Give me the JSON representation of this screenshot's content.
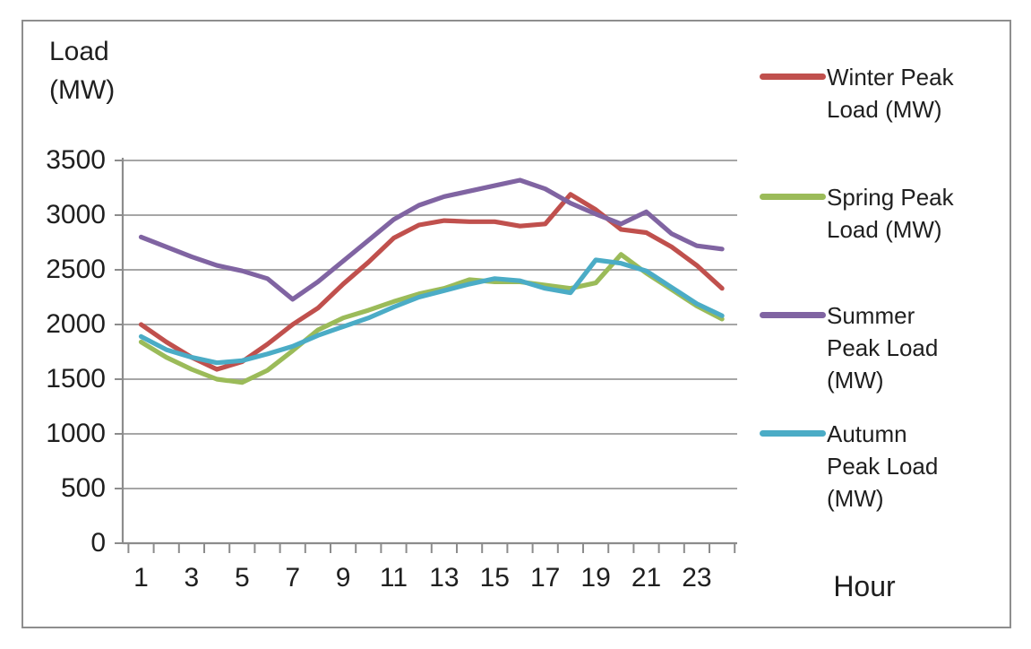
{
  "chart_data": {
    "type": "line",
    "title": "",
    "xlabel": "Hour",
    "ylabel": "Load (MW)",
    "x": [
      1,
      2,
      3,
      4,
      5,
      6,
      7,
      8,
      9,
      10,
      11,
      12,
      13,
      14,
      15,
      16,
      17,
      18,
      19,
      20,
      21,
      22,
      23,
      24
    ],
    "xlim": [
      0.5,
      24.5
    ],
    "ylim": [
      0,
      3500
    ],
    "y_tick_step": 500,
    "y_tick_labels": [
      "3500",
      "3000",
      "2500",
      "2000",
      "1500",
      "1000",
      "500",
      "0"
    ],
    "x_tick_labels": [
      "1",
      "3",
      "5",
      "7",
      "9",
      "11",
      "13",
      "15",
      "17",
      "19",
      "21",
      "23"
    ],
    "grid": "horizontal",
    "legend_position": "right",
    "series": [
      {
        "name": "Winter Peak Load (MW)",
        "color": "#C0504D",
        "values": [
          2000,
          1840,
          1700,
          1590,
          1660,
          1820,
          2000,
          2150,
          2370,
          2570,
          2790,
          2910,
          2950,
          2940,
          2940,
          2900,
          2920,
          3190,
          3050,
          2870,
          2840,
          2710,
          2540,
          2330
        ]
      },
      {
        "name": "Spring Peak Load (MW)",
        "color": "#9BBB59",
        "values": [
          1840,
          1700,
          1590,
          1500,
          1470,
          1580,
          1760,
          1950,
          2060,
          2130,
          2210,
          2280,
          2330,
          2410,
          2390,
          2390,
          2360,
          2330,
          2380,
          2640,
          2470,
          2320,
          2170,
          2050
        ]
      },
      {
        "name": "Summer Peak Load (MW)",
        "color": "#8064A2",
        "values": [
          2800,
          2710,
          2620,
          2540,
          2490,
          2420,
          2230,
          2390,
          2580,
          2770,
          2960,
          3090,
          3170,
          3220,
          3270,
          3320,
          3240,
          3110,
          3010,
          2920,
          3030,
          2830,
          2720,
          2690
        ]
      },
      {
        "name": "Autumn Peak Load (MW)",
        "color": "#4BACC6",
        "values": [
          1890,
          1770,
          1700,
          1650,
          1670,
          1730,
          1800,
          1900,
          1980,
          2060,
          2160,
          2250,
          2310,
          2370,
          2420,
          2400,
          2330,
          2290,
          2590,
          2560,
          2490,
          2340,
          2190,
          2080
        ]
      }
    ]
  },
  "colors": {
    "gridline": "#A6A6A6",
    "axis": "#8C8C8C",
    "frame": "#8E8E8E",
    "background": "#FFFFFF",
    "text": "#1F1F1F"
  }
}
